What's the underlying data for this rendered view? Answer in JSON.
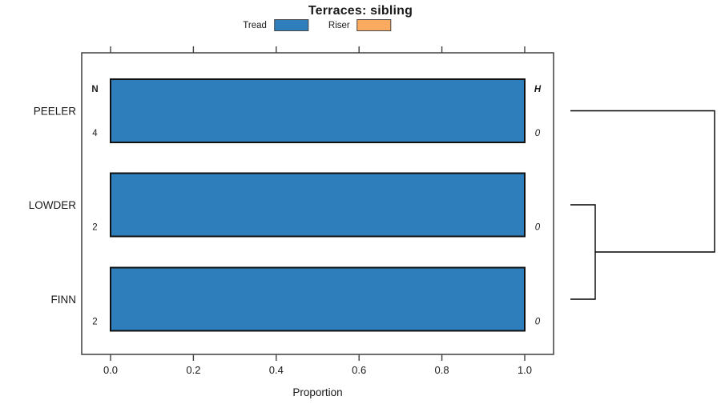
{
  "title": "Terraces: sibling",
  "legend": {
    "items": [
      {
        "label": "Tread",
        "color": "#2e7ebc"
      },
      {
        "label": "Riser",
        "color": "#fbaa60"
      }
    ]
  },
  "chart_data": {
    "type": "bar",
    "orientation": "horizontal",
    "title": "Terraces: sibling",
    "xlabel": "Proportion",
    "xlim": [
      0,
      1.08
    ],
    "xticks": [
      0.0,
      0.2,
      0.4,
      0.6,
      0.8,
      1.0
    ],
    "grid": false,
    "legend_position": "top",
    "categories": [
      "PEELER",
      "LOWDER",
      "FINN"
    ],
    "series": [
      {
        "name": "Tread",
        "color": "#2e7ebc",
        "values": [
          1.0,
          1.0,
          1.0
        ]
      },
      {
        "name": "Riser",
        "color": "#fbaa60",
        "values": [
          0.0,
          0.0,
          0.0
        ]
      }
    ],
    "left_annotation": {
      "header": "N",
      "values": [
        "4",
        "2",
        "2"
      ]
    },
    "right_annotation": {
      "header": "H",
      "values": [
        "0",
        "0",
        "0"
      ]
    },
    "dendrogram": {
      "leaves": [
        "PEELER",
        "LOWDER",
        "FINN"
      ],
      "merges": [
        {
          "members": [
            "LOWDER",
            "FINN"
          ]
        },
        {
          "members": [
            "LOWDER+FINN",
            "PEELER"
          ]
        }
      ]
    }
  }
}
